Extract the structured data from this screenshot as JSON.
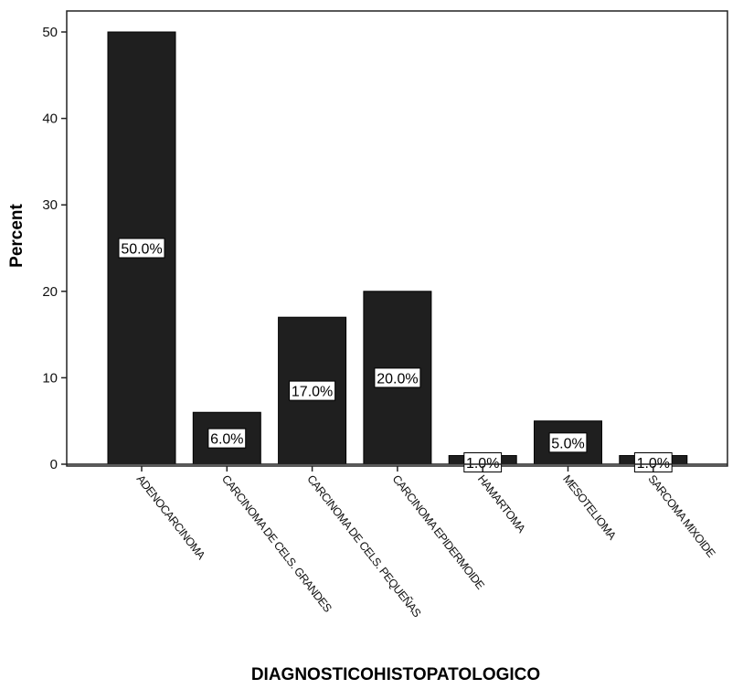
{
  "chart_data": {
    "type": "bar",
    "title": "",
    "xlabel": "DIAGNOSTICOHISTOPATOLOGICO",
    "ylabel": "Percent",
    "ylim": [
      0,
      52
    ],
    "yticks": [
      0,
      10,
      20,
      30,
      40,
      50
    ],
    "grid": false,
    "bar_color": "#1f1f1f",
    "categories": [
      "ADENOCARCINOMA",
      "CARCINOMA DE CELS. GRANDES",
      "CARCINOMA DE CELS. PEQUEÑAS",
      "CARCINOMA EPIDERMOIDE",
      "HAMARTOMA",
      "MESOTELIOMA",
      "SARCOMA MIXOIDE"
    ],
    "values": [
      50.0,
      6.0,
      17.0,
      20.0,
      1.0,
      5.0,
      1.0
    ],
    "data_labels": [
      "50.0%",
      "6.0%",
      "17.0%",
      "20.0%",
      "1.0%",
      "5.0%",
      "1.0%"
    ]
  }
}
